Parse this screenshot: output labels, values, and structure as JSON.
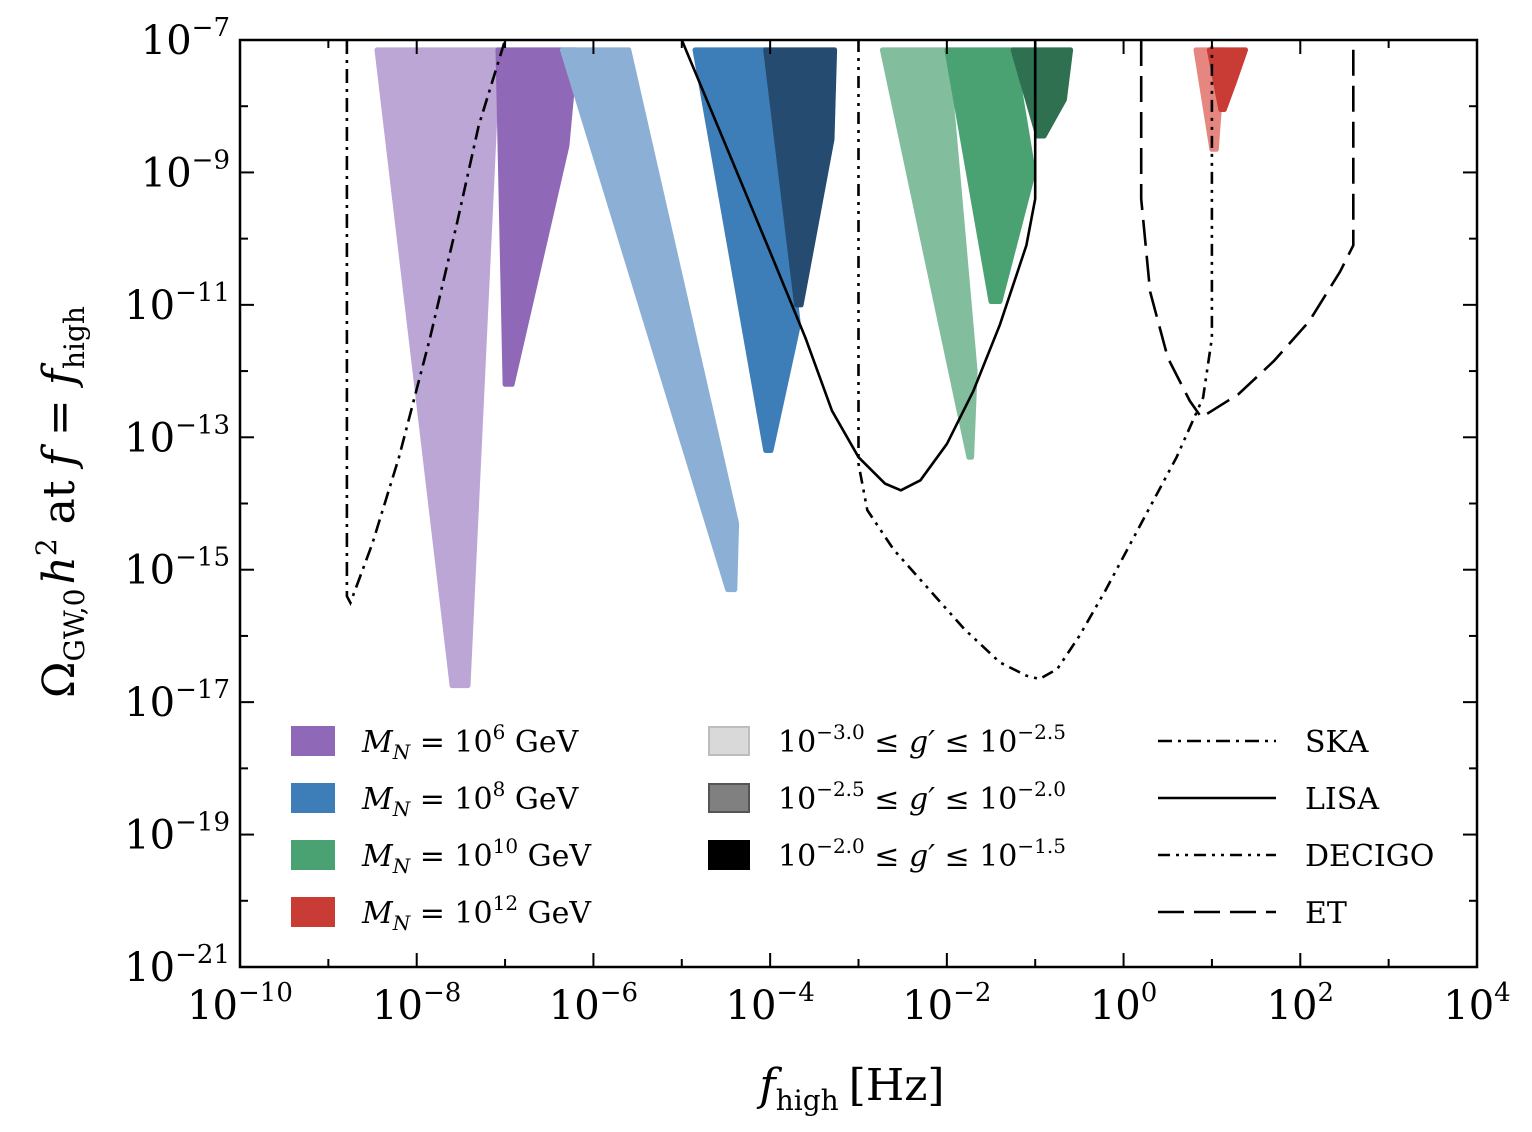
{
  "chart_data": {
    "type": "area",
    "x_scale": "log",
    "y_scale": "log",
    "x_axis": {
      "label": {
        "main": "f",
        "sub": "high",
        "unit": "[Hz]"
      },
      "range": [
        -10,
        4
      ],
      "major_ticks": [
        {
          "base": "10",
          "exp": "−10"
        },
        {
          "base": "10",
          "exp": "−8"
        },
        {
          "base": "10",
          "exp": "−6"
        },
        {
          "base": "10",
          "exp": "−4"
        },
        {
          "base": "10",
          "exp": "−2"
        },
        {
          "base": "10",
          "exp": "0"
        },
        {
          "base": "10",
          "exp": "2"
        },
        {
          "base": "10",
          "exp": "4"
        }
      ]
    },
    "y_axis": {
      "label": {
        "main": "Ω",
        "sub": "GW,0",
        "h": "h",
        "hexp": "2",
        "mid": " at ",
        "f": "f",
        "eq": " = ",
        "f2": "f",
        "sub2": "high"
      },
      "range": [
        -21,
        -7
      ],
      "major_ticks": [
        {
          "base": "10",
          "exp": "−21"
        },
        {
          "base": "10",
          "exp": "−19"
        },
        {
          "base": "10",
          "exp": "−17"
        },
        {
          "base": "10",
          "exp": "−15"
        },
        {
          "base": "10",
          "exp": "−13"
        },
        {
          "base": "10",
          "exp": "−11"
        },
        {
          "base": "10",
          "exp": "−9"
        },
        {
          "base": "10",
          "exp": "−7"
        }
      ]
    },
    "regions": [
      {
        "group": "MN6",
        "shade": "light",
        "color": "#bba6d5",
        "polygon": [
          [
            -8.45,
            -7.15
          ],
          [
            -7.08,
            -7.15
          ],
          [
            -7.42,
            -16.75
          ],
          [
            -7.6,
            -16.75
          ]
        ]
      },
      {
        "group": "MN6",
        "shade": "mid",
        "color": "#8f69b8",
        "polygon": [
          [
            -7.08,
            -7.15
          ],
          [
            -6.2,
            -7.15
          ],
          [
            -6.3,
            -8.6
          ],
          [
            -6.92,
            -12.2
          ],
          [
            -7.0,
            -12.2
          ]
        ]
      },
      {
        "group": "MN8",
        "shade": "light",
        "color": "#8cb0d5",
        "polygon": [
          [
            -6.35,
            -7.15
          ],
          [
            -5.6,
            -7.15
          ],
          [
            -4.38,
            -14.3
          ],
          [
            -4.4,
            -15.3
          ],
          [
            -4.48,
            -15.3
          ]
        ]
      },
      {
        "group": "MN8",
        "shade": "mid",
        "color": "#3d7eb8",
        "polygon": [
          [
            -4.85,
            -7.15
          ],
          [
            -4.05,
            -7.15
          ],
          [
            -3.68,
            -11.3
          ],
          [
            -3.99,
            -13.2
          ],
          [
            -4.05,
            -13.2
          ]
        ]
      },
      {
        "group": "MN8",
        "shade": "dark",
        "color": "#254b70",
        "polygon": [
          [
            -4.05,
            -7.15
          ],
          [
            -3.27,
            -7.15
          ],
          [
            -3.3,
            -8.5
          ],
          [
            -3.65,
            -11.0
          ],
          [
            -3.7,
            -11.0
          ]
        ]
      },
      {
        "group": "MN10",
        "shade": "light",
        "color": "#82bd9e",
        "polygon": [
          [
            -2.73,
            -7.15
          ],
          [
            -2.0,
            -7.15
          ],
          [
            -1.68,
            -12.0
          ],
          [
            -1.72,
            -13.3
          ],
          [
            -1.75,
            -13.3
          ]
        ]
      },
      {
        "group": "MN10",
        "shade": "mid",
        "color": "#4aa273",
        "polygon": [
          [
            -2.0,
            -7.15
          ],
          [
            -1.25,
            -7.15
          ],
          [
            -1.02,
            -9.0
          ],
          [
            -1.4,
            -10.95
          ],
          [
            -1.5,
            -10.95
          ]
        ]
      },
      {
        "group": "MN10",
        "shade": "dark",
        "color": "#2e7050",
        "polygon": [
          [
            -1.25,
            -7.15
          ],
          [
            -0.6,
            -7.15
          ],
          [
            -0.67,
            -7.9
          ],
          [
            -0.9,
            -8.45
          ],
          [
            -0.97,
            -8.45
          ]
        ]
      },
      {
        "group": "MN12",
        "shade": "light",
        "color": "#e58680",
        "polygon": [
          [
            0.82,
            -7.15
          ],
          [
            1.15,
            -7.15
          ],
          [
            1.08,
            -8.1
          ],
          [
            1.05,
            -8.65
          ],
          [
            1.0,
            -8.65
          ]
        ]
      },
      {
        "group": "MN12",
        "shade": "mid",
        "color": "#c83c35",
        "polygon": [
          [
            0.97,
            -7.15
          ],
          [
            1.38,
            -7.15
          ],
          [
            1.25,
            -7.65
          ],
          [
            1.14,
            -8.05
          ],
          [
            1.1,
            -8.05
          ]
        ]
      }
    ],
    "curves": [
      {
        "name": "SKA",
        "dash": "14 6 3 6",
        "points": [
          [
            -8.79,
            -7.0
          ],
          [
            -8.79,
            -15.4
          ],
          [
            -8.75,
            -15.5
          ],
          [
            -8.5,
            -14.6
          ],
          [
            -8.2,
            -13.3
          ],
          [
            -7.85,
            -11.5
          ],
          [
            -7.55,
            -9.8
          ],
          [
            -7.3,
            -8.3
          ],
          [
            -7.0,
            -7.0
          ]
        ]
      },
      {
        "name": "LISA",
        "dash": "none",
        "points": [
          [
            -5.0,
            -7.0
          ],
          [
            -4.5,
            -8.6
          ],
          [
            -4.0,
            -10.2
          ],
          [
            -3.6,
            -11.5
          ],
          [
            -3.3,
            -12.6
          ],
          [
            -3.0,
            -13.3
          ],
          [
            -2.7,
            -13.7
          ],
          [
            -2.52,
            -13.8
          ],
          [
            -2.3,
            -13.65
          ],
          [
            -2.0,
            -13.1
          ],
          [
            -1.7,
            -12.3
          ],
          [
            -1.4,
            -11.3
          ],
          [
            -1.1,
            -10.1
          ],
          [
            -1.0,
            -9.4
          ],
          [
            -1.0,
            -7.0
          ]
        ]
      },
      {
        "name": "DECIGO",
        "dash": "12 6 3 6 3 6",
        "points": [
          [
            -3.0,
            -7.0
          ],
          [
            -3.0,
            -13.4
          ],
          [
            -2.9,
            -14.1
          ],
          [
            -2.6,
            -14.7
          ],
          [
            -2.2,
            -15.3
          ],
          [
            -1.8,
            -15.9
          ],
          [
            -1.4,
            -16.4
          ],
          [
            -1.1,
            -16.6
          ],
          [
            -0.95,
            -16.65
          ],
          [
            -0.75,
            -16.5
          ],
          [
            -0.5,
            -16.0
          ],
          [
            -0.2,
            -15.3
          ],
          [
            0.2,
            -14.3
          ],
          [
            0.6,
            -13.3
          ],
          [
            0.9,
            -12.4
          ],
          [
            1.0,
            -11.5
          ],
          [
            1.0,
            -7.0
          ]
        ]
      },
      {
        "name": "ET",
        "dash": "26 10",
        "points": [
          [
            0.2,
            -7.0
          ],
          [
            0.2,
            -9.4
          ],
          [
            0.3,
            -10.8
          ],
          [
            0.5,
            -11.8
          ],
          [
            0.75,
            -12.45
          ],
          [
            0.88,
            -12.7
          ],
          [
            1.0,
            -12.6
          ],
          [
            1.3,
            -12.35
          ],
          [
            1.7,
            -11.85
          ],
          [
            2.1,
            -11.25
          ],
          [
            2.45,
            -10.5
          ],
          [
            2.6,
            -10.1
          ],
          [
            2.6,
            -7.0
          ]
        ]
      }
    ],
    "legend": {
      "masses": [
        {
          "prefix": "M",
          "sub": "N",
          "mid": " = 10",
          "exp": "6",
          "unit": " GeV",
          "color": "#8f69b8"
        },
        {
          "prefix": "M",
          "sub": "N",
          "mid": " = 10",
          "exp": "8",
          "unit": " GeV",
          "color": "#3d7eb8"
        },
        {
          "prefix": "M",
          "sub": "N",
          "mid": " = 10",
          "exp": "10",
          "unit": " GeV",
          "color": "#4aa273"
        },
        {
          "prefix": "M",
          "sub": "N",
          "mid": " = 10",
          "exp": "12",
          "unit": " GeV",
          "color": "#c83c35"
        }
      ],
      "couplings": [
        {
          "lo_base": "10",
          "lo_exp": "−3.0",
          "rel": " ≤ ",
          "g": "g′",
          "hi_base": "10",
          "hi_exp": "−2.5",
          "color": "#d9d9d9",
          "stroke": "#bdbdbd"
        },
        {
          "lo_base": "10",
          "lo_exp": "−2.5",
          "rel": " ≤ ",
          "g": "g′",
          "hi_base": "10",
          "hi_exp": "−2.0",
          "color": "#808080",
          "stroke": "#555555"
        },
        {
          "lo_base": "10",
          "lo_exp": "−2.0",
          "rel": " ≤ ",
          "g": "g′",
          "hi_base": "10",
          "hi_exp": "−1.5",
          "color": "#000000",
          "stroke": "#000000"
        }
      ],
      "detectors": [
        {
          "name": "SKA",
          "dash": "14 6 3 6"
        },
        {
          "name": "LISA",
          "dash": "none"
        },
        {
          "name": "DECIGO",
          "dash": "12 6 3 6 3 6"
        },
        {
          "name": "ET",
          "dash": "26 10"
        }
      ]
    }
  }
}
